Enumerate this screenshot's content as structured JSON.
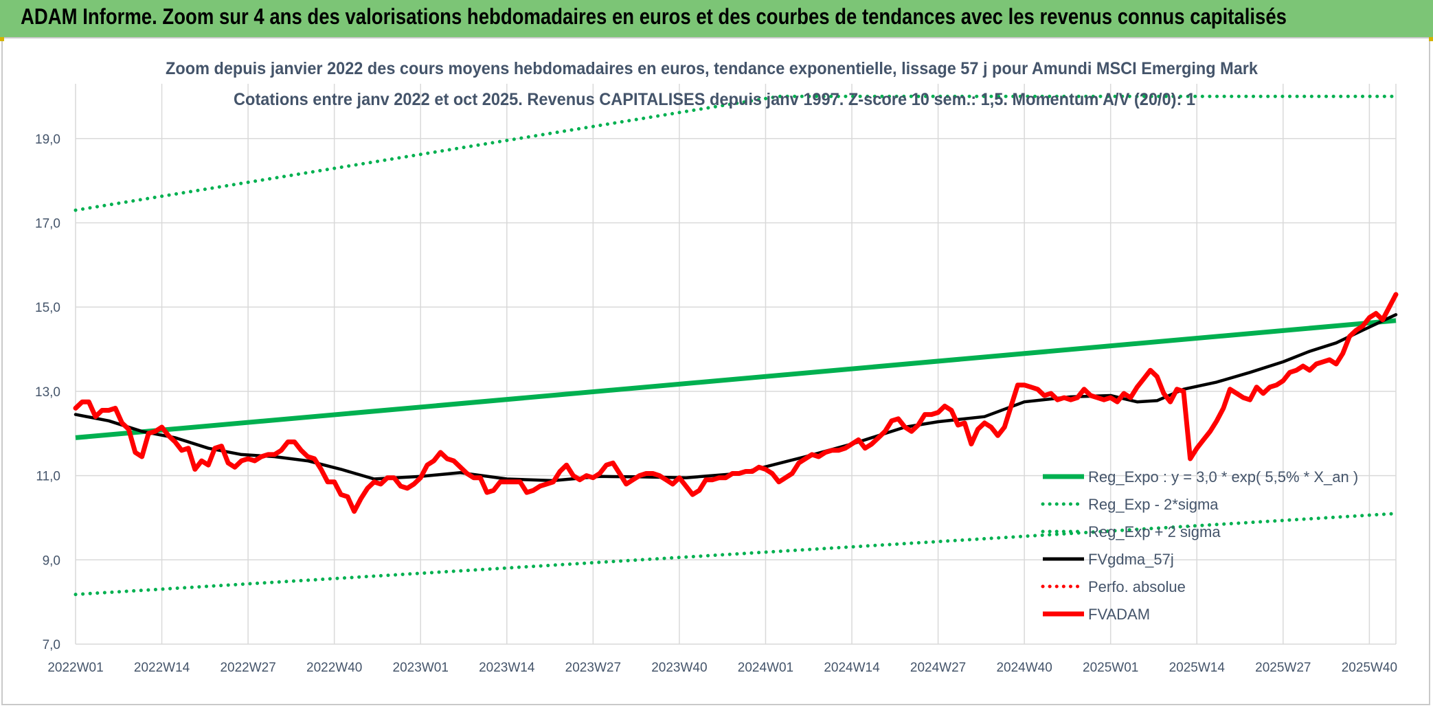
{
  "banner": {
    "title": "ADAM Informe. Zoom sur 4 ans des valorisations hebdomadaires en euros et des courbes de tendances avec les revenus connus capitalisés"
  },
  "chart_data": {
    "type": "line",
    "title": "Zoom depuis janvier 2022 des cours moyens hebdomadaires en euros, tendance exponentielle, lissage 57 j pour Amundi MSCI Emerging Mark",
    "subtitle": "Cotations entre janv 2022 et oct 2025. Revenus CAPITALISES depuis janv 1997. Z-score 10 sem.: 1,5. Momentum A/V (20/0): 1",
    "xlabel": "",
    "ylabel": "",
    "ylim": [
      7.0,
      20.3
    ],
    "yticks": [
      "7,0",
      "9,0",
      "11,0",
      "13,0",
      "15,0",
      "17,0",
      "19,0"
    ],
    "x_ticks": [
      "2022W01",
      "2022W14",
      "2022W27",
      "2022W40",
      "2023W01",
      "2023W14",
      "2023W27",
      "2023W40",
      "2024W01",
      "2024W14",
      "2024W27",
      "2024W40",
      "2025W01",
      "2025W14",
      "2025W27",
      "2025W40"
    ],
    "x_range_weeks": [
      0,
      199
    ],
    "grid": "both",
    "legend_position": "lower-right",
    "series": [
      {
        "name": "Reg_Expo : y = 3,0 * exp( 5,5% *  X_an )",
        "color": "#00b050",
        "style": "solid",
        "x": [
          0,
          199
        ],
        "y": [
          11.9,
          14.68
        ]
      },
      {
        "name": "Reg_Exp - 2*sigma",
        "color": "#00b050",
        "style": "dotted",
        "x": [
          0,
          199
        ],
        "y": [
          8.18,
          10.1
        ]
      },
      {
        "name": "Reg_Exp + 2 sigma",
        "color": "#00b050",
        "style": "dotted",
        "x": [
          0,
          106,
          180,
          199
        ],
        "y": [
          17.3,
          20.0,
          20.0,
          20.0
        ]
      },
      {
        "name": "FVgdma_57j",
        "color": "#000000",
        "style": "solid",
        "x": [
          0,
          5,
          10,
          15,
          20,
          25,
          30,
          35,
          40,
          45,
          52,
          58,
          65,
          72,
          79,
          85,
          92,
          100,
          110,
          117,
          125,
          130,
          137,
          143,
          150,
          156,
          160,
          163,
          167,
          172,
          177,
          182,
          186,
          190,
          194,
          199
        ],
        "y": [
          12.45,
          12.3,
          12.05,
          11.9,
          11.65,
          11.5,
          11.45,
          11.35,
          11.15,
          10.92,
          10.98,
          11.07,
          10.92,
          10.88,
          10.98,
          10.97,
          10.95,
          11.05,
          11.45,
          11.75,
          12.15,
          12.28,
          12.4,
          12.75,
          12.87,
          12.9,
          12.75,
          12.78,
          13.05,
          13.22,
          13.45,
          13.7,
          13.95,
          14.15,
          14.45,
          14.82
        ]
      },
      {
        "name": "Perfo. absolue",
        "color": "#ff0000",
        "style": "dotted",
        "x": [],
        "y": []
      },
      {
        "name": "FVADAM",
        "color": "#ff0000",
        "style": "solid",
        "x": [
          0,
          1,
          2,
          3,
          4,
          5,
          6,
          7,
          8,
          9,
          10,
          11,
          12,
          13,
          14,
          15,
          16,
          17,
          18,
          19,
          20,
          21,
          22,
          23,
          24,
          25,
          26,
          27,
          28,
          29,
          30,
          31,
          32,
          33,
          34,
          35,
          36,
          37,
          38,
          39,
          40,
          41,
          42,
          43,
          44,
          45,
          46,
          47,
          48,
          49,
          50,
          51,
          52,
          53,
          54,
          55,
          56,
          57,
          58,
          59,
          60,
          61,
          62,
          63,
          64,
          65,
          66,
          67,
          68,
          69,
          70,
          71,
          72,
          73,
          74,
          75,
          76,
          77,
          78,
          79,
          80,
          81,
          82,
          83,
          84,
          85,
          86,
          87,
          88,
          89,
          90,
          91,
          92,
          93,
          94,
          95,
          96,
          97,
          98,
          99,
          100,
          101,
          102,
          103,
          104,
          105,
          106,
          107,
          108,
          109,
          110,
          111,
          112,
          113,
          114,
          115,
          116,
          117,
          118,
          119,
          120,
          121,
          122,
          123,
          124,
          125,
          126,
          127,
          128,
          129,
          130,
          131,
          132,
          133,
          134,
          135,
          136,
          137,
          138,
          139,
          140,
          141,
          142,
          143,
          144,
          145,
          146,
          147,
          148,
          149,
          150,
          151,
          152,
          153,
          154,
          155,
          156,
          157,
          158,
          159,
          160,
          161,
          162,
          163,
          164,
          165,
          166,
          167,
          168,
          169,
          170,
          171,
          172,
          173,
          174,
          175,
          176,
          177,
          178,
          179,
          180,
          181,
          182,
          183,
          184,
          185,
          186,
          187,
          188,
          189,
          190,
          191,
          192,
          193,
          194,
          195,
          196,
          197,
          198,
          199
        ],
        "y": [
          12.6,
          12.75,
          12.75,
          12.4,
          12.55,
          12.55,
          12.6,
          12.25,
          12.1,
          11.55,
          11.45,
          12.0,
          12.05,
          12.15,
          11.95,
          11.8,
          11.6,
          11.65,
          11.15,
          11.35,
          11.25,
          11.65,
          11.7,
          11.3,
          11.2,
          11.35,
          11.4,
          11.35,
          11.45,
          11.5,
          11.5,
          11.6,
          11.8,
          11.8,
          11.6,
          11.45,
          11.4,
          11.15,
          10.85,
          10.85,
          10.55,
          10.5,
          10.15,
          10.45,
          10.7,
          10.85,
          10.8,
          10.95,
          10.95,
          10.75,
          10.7,
          10.8,
          10.95,
          11.25,
          11.35,
          11.55,
          11.4,
          11.35,
          11.2,
          11.05,
          10.95,
          10.95,
          10.6,
          10.65,
          10.85,
          10.85,
          10.85,
          10.85,
          10.6,
          10.65,
          10.75,
          10.8,
          10.85,
          11.1,
          11.25,
          11.0,
          10.9,
          11.0,
          10.95,
          11.05,
          11.25,
          11.3,
          11.05,
          10.8,
          10.9,
          11.0,
          11.05,
          11.05,
          11.0,
          10.9,
          10.8,
          10.95,
          10.75,
          10.55,
          10.65,
          10.9,
          10.9,
          10.95,
          10.95,
          11.05,
          11.05,
          11.1,
          11.1,
          11.2,
          11.15,
          11.05,
          10.85,
          10.95,
          11.05,
          11.3,
          11.4,
          11.5,
          11.45,
          11.55,
          11.6,
          11.6,
          11.65,
          11.75,
          11.85,
          11.65,
          11.75,
          11.9,
          12.05,
          12.3,
          12.35,
          12.15,
          12.05,
          12.2,
          12.45,
          12.45,
          12.5,
          12.65,
          12.55,
          12.2,
          12.25,
          11.75,
          12.1,
          12.25,
          12.15,
          11.95,
          12.15,
          12.65,
          13.15,
          13.15,
          13.1,
          13.05,
          12.9,
          12.95,
          12.8,
          12.85,
          12.8,
          12.85,
          13.05,
          12.9,
          12.85,
          12.8,
          12.85,
          12.75,
          12.95,
          12.85,
          13.1,
          13.3,
          13.5,
          13.35,
          12.95,
          12.75,
          13.05,
          13.0,
          11.4,
          11.65,
          11.85,
          12.05,
          12.3,
          12.6,
          13.05,
          12.95,
          12.85,
          12.8,
          13.1,
          12.95,
          13.1,
          13.15,
          13.25,
          13.45,
          13.5,
          13.6,
          13.5,
          13.65,
          13.7,
          13.75,
          13.65,
          13.9,
          14.3,
          14.45,
          14.55,
          14.75,
          14.85,
          14.7,
          15.0,
          15.3
        ]
      }
    ]
  },
  "legend": {
    "items": [
      {
        "label": "Reg_Expo : y = 3,0 * exp( 5,5% *  X_an )",
        "color": "#00b050",
        "style": "solid"
      },
      {
        "label": "Reg_Exp - 2*sigma",
        "color": "#00b050",
        "style": "dotted"
      },
      {
        "label": "Reg_Exp + 2 sigma",
        "color": "#00b050",
        "style": "dotted"
      },
      {
        "label": "FVgdma_57j",
        "color": "#000000",
        "style": "solid"
      },
      {
        "label": "Perfo. absolue",
        "color": "#ff0000",
        "style": "dotted"
      },
      {
        "label": "FVADAM",
        "color": "#ff0000",
        "style": "solid"
      }
    ]
  }
}
